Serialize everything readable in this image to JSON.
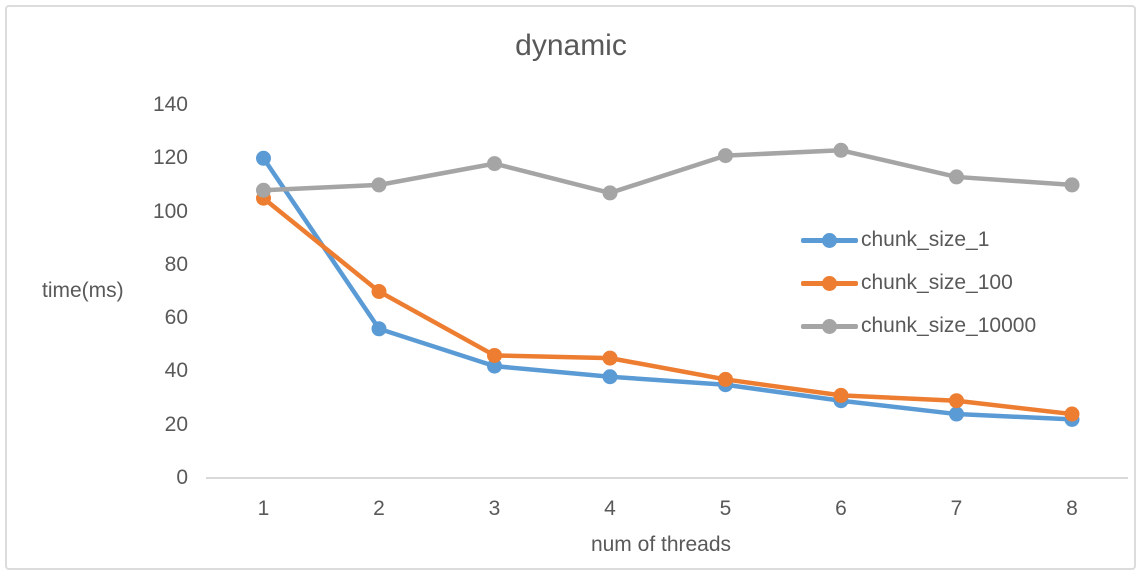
{
  "frame": {
    "border_color": "#dcdcdc",
    "background": "#ffffff"
  },
  "chart_data": {
    "type": "line",
    "title": "dynamic",
    "xlabel": "num of threads",
    "ylabel": "time(ms)",
    "categories": [
      "1",
      "2",
      "3",
      "4",
      "5",
      "6",
      "7",
      "8"
    ],
    "series": [
      {
        "name": "chunk_size_1",
        "color": "#5B9BD5",
        "values": [
          120,
          56,
          42,
          38,
          35,
          29,
          24,
          22
        ]
      },
      {
        "name": "chunk_size_100",
        "color": "#ED7D31",
        "values": [
          105,
          70,
          46,
          45,
          37,
          31,
          29,
          24
        ]
      },
      {
        "name": "chunk_size_10000",
        "color": "#A5A5A5",
        "values": [
          108,
          110,
          118,
          107,
          121,
          123,
          113,
          110
        ]
      }
    ],
    "ylim": [
      0,
      140
    ],
    "ytick_step": 20,
    "yticks": [
      0,
      20,
      40,
      60,
      80,
      100,
      120,
      140
    ],
    "grid": false,
    "legend_position": "middle-right",
    "text_color": "#595959",
    "axis_line_color": "#d9d9d9",
    "marker": "circle"
  }
}
